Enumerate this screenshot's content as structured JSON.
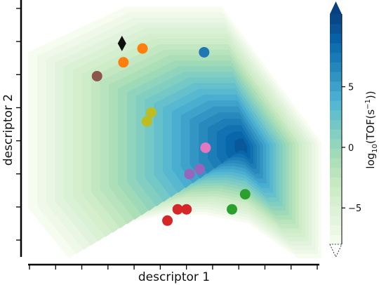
{
  "chart_data": {
    "type": "contour",
    "xlabel": "descriptor 1",
    "ylabel": "descriptor 2",
    "colorbar": {
      "label": "log₁₀(TOF(s⁻¹))",
      "label_main": "log",
      "label_sub": "10",
      "label_rest": "(TOF(s",
      "label_sup": "−1",
      "label_end": "))",
      "range": [
        -8,
        11
      ],
      "ticks": [
        5,
        0,
        -5
      ],
      "tick_labels": [
        "5",
        "0",
        "−5"
      ],
      "extend": "both",
      "colormap": "GnBu",
      "colors": [
        "#f7fcf0",
        "#e0f3db",
        "#ccebc5",
        "#a8ddb5",
        "#7bccc4",
        "#4eb3d3",
        "#2b8cbe",
        "#0868ac",
        "#084081"
      ]
    },
    "x_axis": {
      "xlim": [
        0,
        10
      ],
      "tick_count": 12,
      "tick_labels": []
    },
    "y_axis": {
      "ylim": [
        0,
        10
      ],
      "tick_count": 8,
      "tick_labels": []
    },
    "contour": {
      "levels": 24,
      "boundary": [
        [
          0,
          2
        ],
        [
          0,
          8.2
        ],
        [
          3.3,
          10
        ],
        [
          6.6,
          10
        ],
        [
          10,
          4.6
        ],
        [
          10,
          0
        ],
        [
          9.2,
          0
        ],
        [
          7.5,
          1.4
        ],
        [
          6.0,
          1.75
        ],
        [
          4.5,
          1.7
        ],
        [
          3.0,
          1.3
        ],
        [
          1.4,
          0
        ]
      ],
      "peak": {
        "x": 7.35,
        "y": 4.45,
        "value": 9.5
      },
      "min_value": -8
    },
    "points": [
      {
        "x": 3.2,
        "y": 8.55,
        "color": "#111111",
        "marker": "diamond"
      },
      {
        "x": 3.9,
        "y": 8.35,
        "color": "#ff7f0e",
        "marker": "circle"
      },
      {
        "x": 3.25,
        "y": 7.8,
        "color": "#ff7f0e",
        "marker": "circle"
      },
      {
        "x": 6.0,
        "y": 8.2,
        "color": "#1f77b4",
        "marker": "circle"
      },
      {
        "x": 2.35,
        "y": 7.25,
        "color": "#8c564b",
        "marker": "circle"
      },
      {
        "x": 4.2,
        "y": 5.8,
        "color": "#bcbd22",
        "marker": "circle"
      },
      {
        "x": 4.05,
        "y": 5.45,
        "color": "#bcbd22",
        "marker": "circle"
      },
      {
        "x": 6.05,
        "y": 4.4,
        "color": "#e377c2",
        "marker": "circle"
      },
      {
        "x": 5.85,
        "y": 3.55,
        "color": "#9467bd",
        "marker": "circle"
      },
      {
        "x": 5.5,
        "y": 3.35,
        "color": "#9467bd",
        "marker": "circle"
      },
      {
        "x": 7.4,
        "y": 2.55,
        "color": "#2ca02c",
        "marker": "circle"
      },
      {
        "x": 6.95,
        "y": 1.95,
        "color": "#2ca02c",
        "marker": "circle"
      },
      {
        "x": 5.4,
        "y": 1.95,
        "color": "#d62728",
        "marker": "circle"
      },
      {
        "x": 5.1,
        "y": 1.95,
        "color": "#d62728",
        "marker": "circle"
      },
      {
        "x": 4.75,
        "y": 1.5,
        "color": "#d62728",
        "marker": "circle"
      }
    ]
  }
}
